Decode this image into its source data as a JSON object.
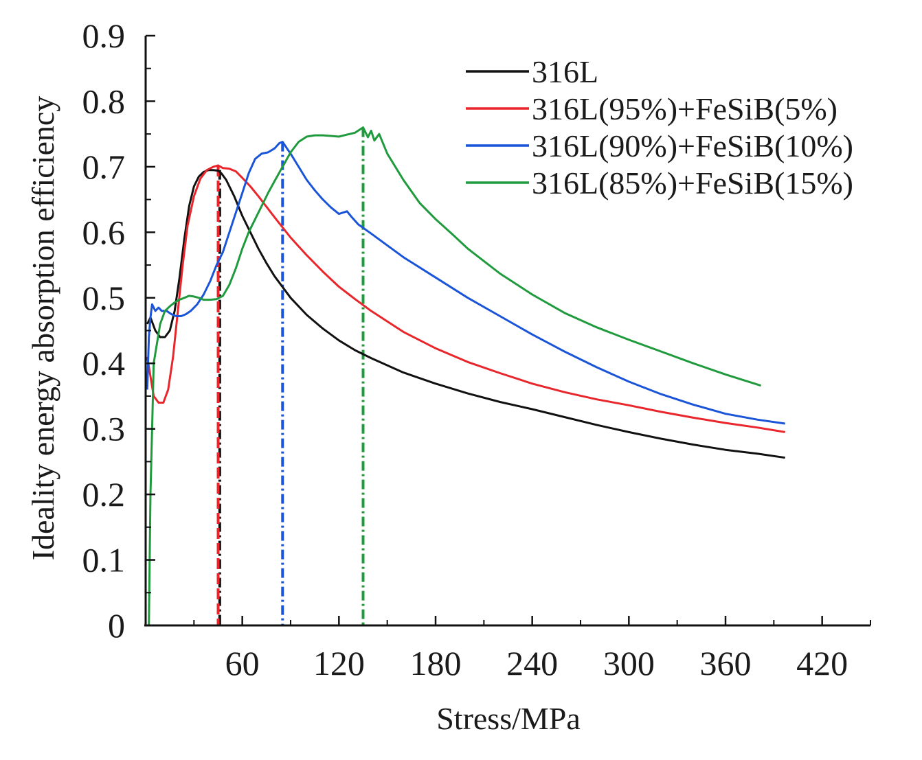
{
  "chart_data": {
    "type": "line",
    "title": "",
    "xlabel": "Stress/MPa",
    "ylabel": "Ideality energy absorption efficiency",
    "xlim": [
      0,
      450
    ],
    "ylim": [
      0,
      0.9
    ],
    "x_ticks": [
      60,
      120,
      180,
      240,
      300,
      360,
      420
    ],
    "x_tick_labels": [
      "60",
      "120",
      "180",
      "240",
      "300",
      "360",
      "420"
    ],
    "y_ticks": [
      0,
      0.1,
      0.2,
      0.3,
      0.4,
      0.5,
      0.6,
      0.7,
      0.8,
      0.9
    ],
    "y_tick_labels": [
      "0",
      "0.1",
      "0.2",
      "0.3",
      "0.4",
      "0.5",
      "0.6",
      "0.7",
      "0.8",
      "0.9"
    ],
    "legend_position": "top-right",
    "series": [
      {
        "name": "316L",
        "color": "#111111",
        "peak_stress": 46,
        "peak_marker_style": "dash-dot",
        "points": [
          [
            1,
            0.46
          ],
          [
            3,
            0.47
          ],
          [
            6,
            0.45
          ],
          [
            9,
            0.44
          ],
          [
            12,
            0.44
          ],
          [
            15,
            0.45
          ],
          [
            18,
            0.48
          ],
          [
            21,
            0.53
          ],
          [
            24,
            0.59
          ],
          [
            27,
            0.64
          ],
          [
            30,
            0.67
          ],
          [
            33,
            0.685
          ],
          [
            36,
            0.692
          ],
          [
            39,
            0.695
          ],
          [
            42,
            0.695
          ],
          [
            45,
            0.694
          ],
          [
            47,
            0.69
          ],
          [
            50,
            0.68
          ],
          [
            55,
            0.655
          ],
          [
            60,
            0.625
          ],
          [
            65,
            0.6
          ],
          [
            70,
            0.575
          ],
          [
            75,
            0.553
          ],
          [
            80,
            0.533
          ],
          [
            90,
            0.5
          ],
          [
            100,
            0.474
          ],
          [
            110,
            0.453
          ],
          [
            120,
            0.435
          ],
          [
            130,
            0.42
          ],
          [
            140,
            0.408
          ],
          [
            160,
            0.386
          ],
          [
            180,
            0.369
          ],
          [
            200,
            0.354
          ],
          [
            220,
            0.341
          ],
          [
            240,
            0.33
          ],
          [
            260,
            0.318
          ],
          [
            280,
            0.306
          ],
          [
            300,
            0.295
          ],
          [
            320,
            0.285
          ],
          [
            340,
            0.276
          ],
          [
            360,
            0.268
          ],
          [
            380,
            0.262
          ],
          [
            397,
            0.256
          ]
        ]
      },
      {
        "name": "316L(95%)+FeSiB(5%)",
        "color": "#e8262b",
        "peak_stress": 45,
        "peak_marker_style": "dashed",
        "points": [
          [
            1,
            0.41
          ],
          [
            3,
            0.38
          ],
          [
            5,
            0.35
          ],
          [
            8,
            0.34
          ],
          [
            11,
            0.34
          ],
          [
            14,
            0.36
          ],
          [
            17,
            0.41
          ],
          [
            20,
            0.48
          ],
          [
            23,
            0.55
          ],
          [
            26,
            0.61
          ],
          [
            30,
            0.655
          ],
          [
            34,
            0.682
          ],
          [
            38,
            0.695
          ],
          [
            42,
            0.7
          ],
          [
            45,
            0.702
          ],
          [
            48,
            0.698
          ],
          [
            52,
            0.697
          ],
          [
            56,
            0.693
          ],
          [
            60,
            0.683
          ],
          [
            65,
            0.67
          ],
          [
            70,
            0.655
          ],
          [
            80,
            0.623
          ],
          [
            90,
            0.592
          ],
          [
            100,
            0.565
          ],
          [
            110,
            0.54
          ],
          [
            120,
            0.517
          ],
          [
            130,
            0.498
          ],
          [
            140,
            0.48
          ],
          [
            160,
            0.448
          ],
          [
            180,
            0.423
          ],
          [
            200,
            0.402
          ],
          [
            220,
            0.385
          ],
          [
            240,
            0.369
          ],
          [
            260,
            0.356
          ],
          [
            280,
            0.345
          ],
          [
            300,
            0.336
          ],
          [
            320,
            0.326
          ],
          [
            340,
            0.317
          ],
          [
            360,
            0.309
          ],
          [
            380,
            0.302
          ],
          [
            397,
            0.295
          ]
        ]
      },
      {
        "name": "316L(90%)+FeSiB(10%)",
        "color": "#1a54d8",
        "peak_stress": 85,
        "peak_marker_style": "dash-dot",
        "points": [
          [
            1,
            0.36
          ],
          [
            2,
            0.44
          ],
          [
            3,
            0.47
          ],
          [
            4,
            0.49
          ],
          [
            6,
            0.48
          ],
          [
            8,
            0.485
          ],
          [
            10,
            0.48
          ],
          [
            13,
            0.48
          ],
          [
            16,
            0.475
          ],
          [
            19,
            0.472
          ],
          [
            22,
            0.472
          ],
          [
            25,
            0.475
          ],
          [
            28,
            0.48
          ],
          [
            32,
            0.49
          ],
          [
            36,
            0.505
          ],
          [
            40,
            0.525
          ],
          [
            44,
            0.55
          ],
          [
            48,
            0.57
          ],
          [
            52,
            0.6
          ],
          [
            56,
            0.63
          ],
          [
            60,
            0.66
          ],
          [
            64,
            0.69
          ],
          [
            68,
            0.712
          ],
          [
            72,
            0.72
          ],
          [
            76,
            0.722
          ],
          [
            80,
            0.728
          ],
          [
            83,
            0.736
          ],
          [
            85,
            0.738
          ],
          [
            88,
            0.727
          ],
          [
            90,
            0.72
          ],
          [
            95,
            0.7
          ],
          [
            100,
            0.68
          ],
          [
            105,
            0.664
          ],
          [
            110,
            0.65
          ],
          [
            115,
            0.638
          ],
          [
            120,
            0.628
          ],
          [
            125,
            0.632
          ],
          [
            128,
            0.623
          ],
          [
            132,
            0.612
          ],
          [
            140,
            0.598
          ],
          [
            150,
            0.58
          ],
          [
            160,
            0.562
          ],
          [
            180,
            0.531
          ],
          [
            200,
            0.5
          ],
          [
            220,
            0.472
          ],
          [
            240,
            0.444
          ],
          [
            260,
            0.418
          ],
          [
            280,
            0.394
          ],
          [
            300,
            0.372
          ],
          [
            320,
            0.353
          ],
          [
            340,
            0.337
          ],
          [
            360,
            0.323
          ],
          [
            380,
            0.314
          ],
          [
            397,
            0.308
          ]
        ]
      },
      {
        "name": "316L(85%)+FeSiB(15%)",
        "color": "#1f9a3d",
        "peak_stress": 135,
        "peak_marker_style": "dash-dot",
        "points": [
          [
            2,
            0.0
          ],
          [
            3,
            0.2
          ],
          [
            4,
            0.3
          ],
          [
            5,
            0.4
          ],
          [
            7,
            0.43
          ],
          [
            9,
            0.46
          ],
          [
            12,
            0.48
          ],
          [
            15,
            0.487
          ],
          [
            18,
            0.493
          ],
          [
            21,
            0.497
          ],
          [
            24,
            0.5
          ],
          [
            27,
            0.503
          ],
          [
            30,
            0.502
          ],
          [
            33,
            0.5
          ],
          [
            36,
            0.497
          ],
          [
            40,
            0.497
          ],
          [
            44,
            0.498
          ],
          [
            48,
            0.503
          ],
          [
            52,
            0.52
          ],
          [
            56,
            0.545
          ],
          [
            60,
            0.575
          ],
          [
            64,
            0.6
          ],
          [
            68,
            0.62
          ],
          [
            72,
            0.64
          ],
          [
            76,
            0.66
          ],
          [
            80,
            0.678
          ],
          [
            85,
            0.7
          ],
          [
            90,
            0.722
          ],
          [
            95,
            0.738
          ],
          [
            100,
            0.746
          ],
          [
            105,
            0.748
          ],
          [
            110,
            0.748
          ],
          [
            115,
            0.747
          ],
          [
            120,
            0.746
          ],
          [
            125,
            0.749
          ],
          [
            130,
            0.752
          ],
          [
            135,
            0.76
          ],
          [
            138,
            0.745
          ],
          [
            140,
            0.755
          ],
          [
            142,
            0.74
          ],
          [
            145,
            0.75
          ],
          [
            150,
            0.72
          ],
          [
            160,
            0.68
          ],
          [
            170,
            0.645
          ],
          [
            180,
            0.62
          ],
          [
            190,
            0.598
          ],
          [
            200,
            0.575
          ],
          [
            220,
            0.537
          ],
          [
            240,
            0.505
          ],
          [
            260,
            0.477
          ],
          [
            280,
            0.455
          ],
          [
            300,
            0.436
          ],
          [
            320,
            0.418
          ],
          [
            340,
            0.4
          ],
          [
            360,
            0.383
          ],
          [
            382,
            0.366
          ]
        ]
      }
    ]
  }
}
